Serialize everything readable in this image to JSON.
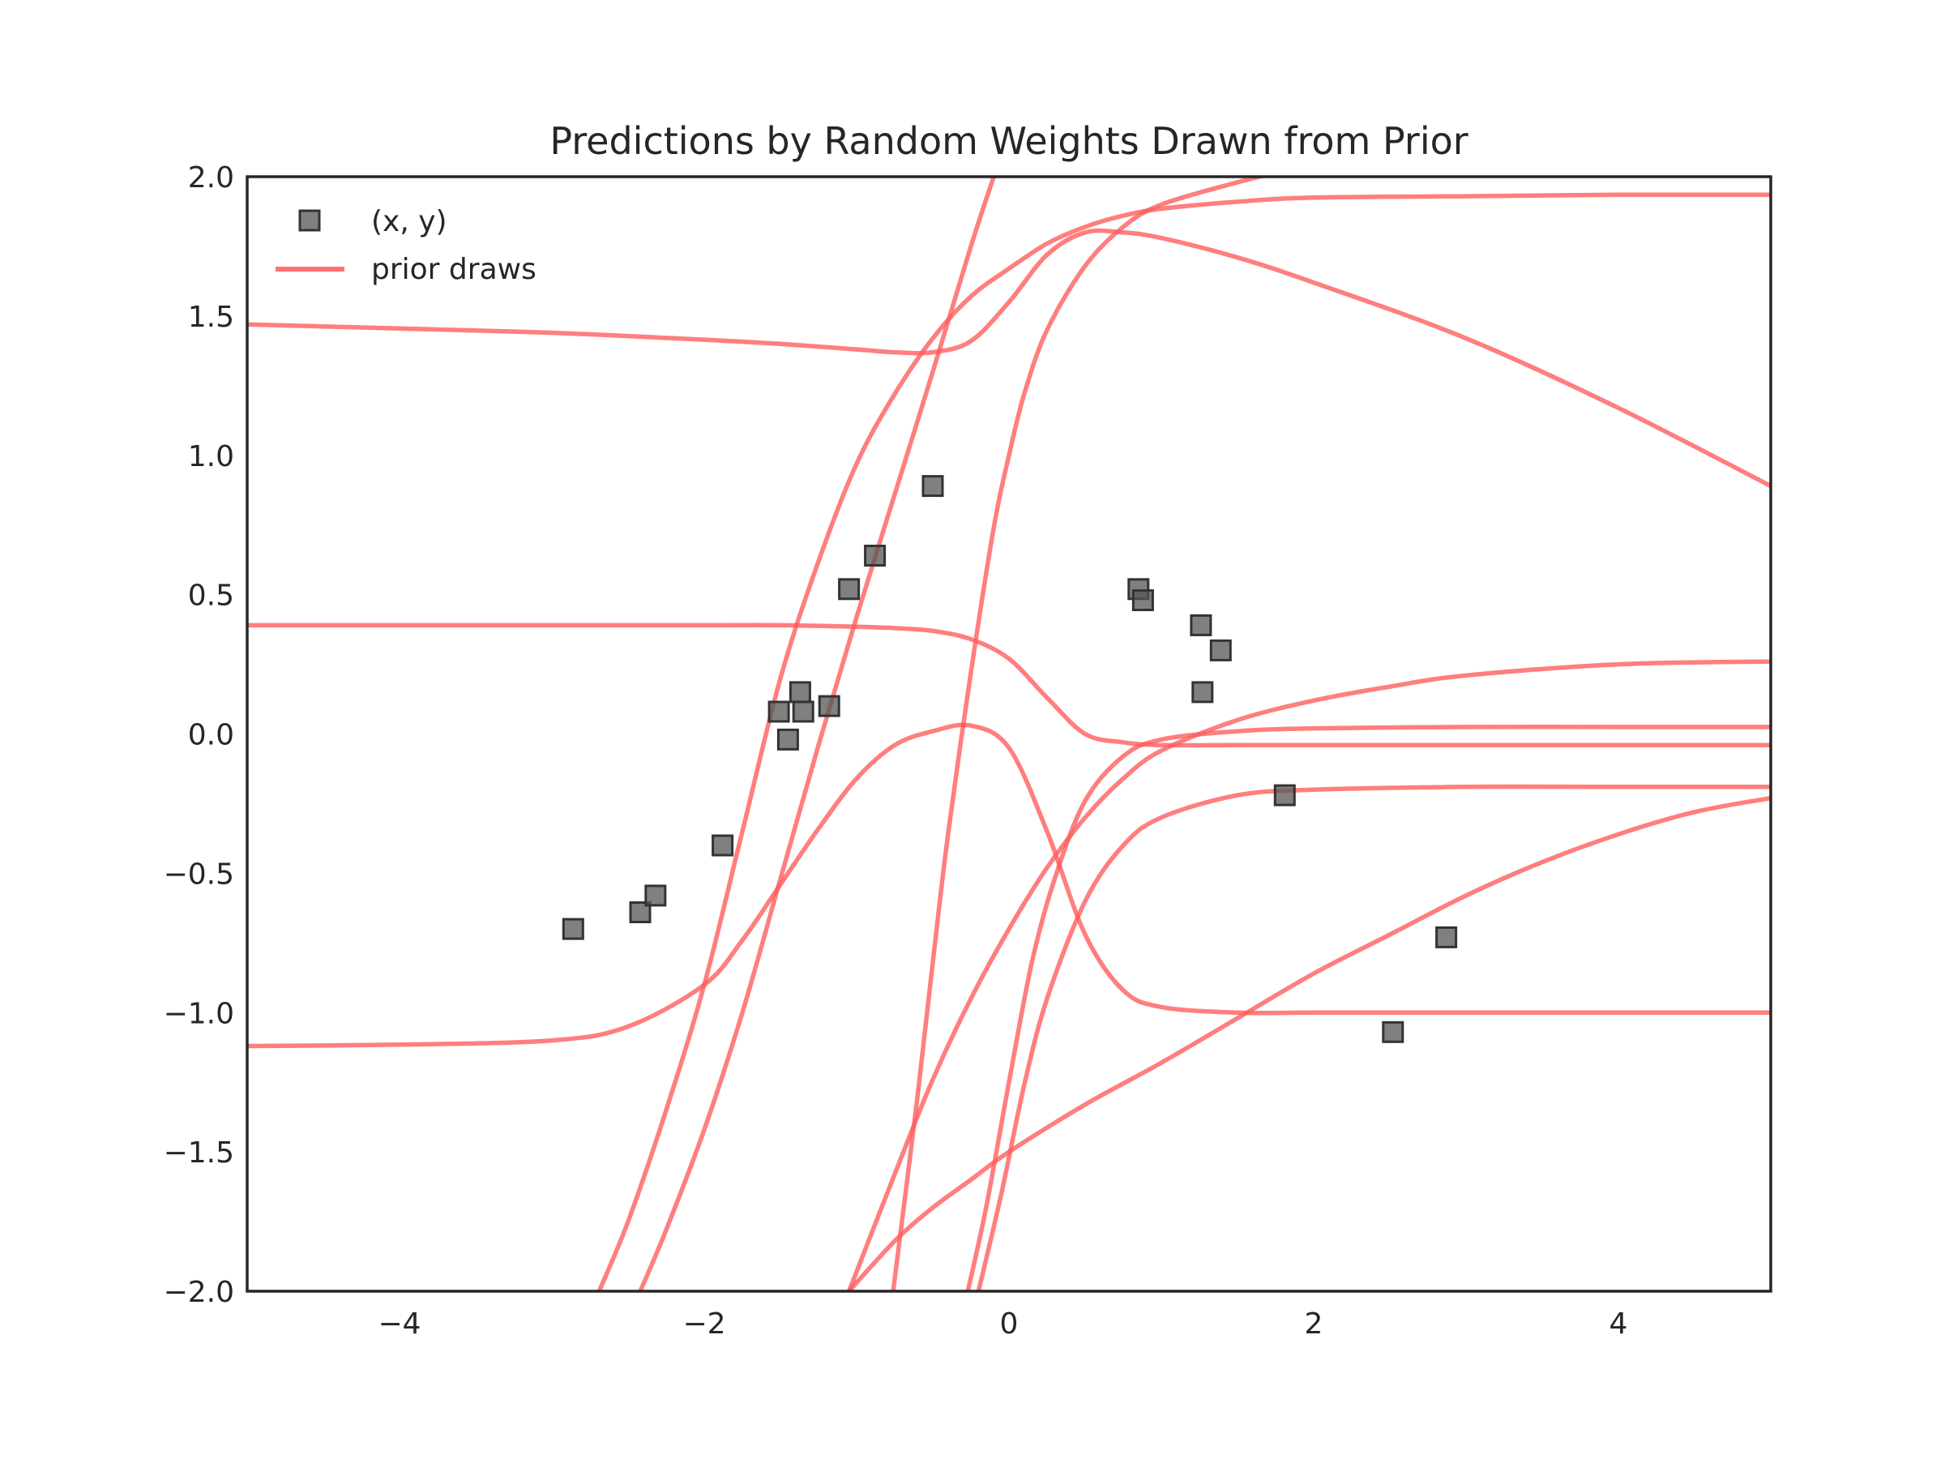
{
  "chart_data": {
    "type": "scatter",
    "title": "Predictions by Random Weights Drawn from Prior",
    "xlabel": "",
    "ylabel": "",
    "xlim": [
      -5,
      5
    ],
    "ylim": [
      -2,
      2
    ],
    "xticks": [
      -4,
      -2,
      0,
      2,
      4
    ],
    "yticks": [
      -2.0,
      -1.5,
      -1.0,
      -0.5,
      0.0,
      0.5,
      1.0,
      1.5,
      2.0
    ],
    "xtick_labels": [
      "−4",
      "−2",
      "0",
      "2",
      "4"
    ],
    "ytick_labels": [
      "−2.0",
      "−1.5",
      "−1.0",
      "−0.5",
      "0.0",
      "0.5",
      "1.0",
      "1.5",
      "2.0"
    ],
    "grid": false,
    "legend": {
      "location": "top-left",
      "entries": [
        {
          "label": "(x, y)",
          "kind": "marker",
          "color": "#555555"
        },
        {
          "label": "prior draws",
          "kind": "line",
          "color": "#ff5a5a"
        }
      ]
    },
    "points": {
      "name": "(x, y)",
      "marker": "square",
      "color": "#555555",
      "x": [
        -2.86,
        -2.42,
        -2.32,
        -1.88,
        -1.51,
        -1.45,
        -1.37,
        -1.35,
        -1.18,
        -1.05,
        -0.88,
        -0.5,
        0.85,
        0.88,
        1.26,
        1.39,
        1.27,
        1.81,
        2.52,
        2.87
      ],
      "y": [
        -0.7,
        -0.64,
        -0.58,
        -0.4,
        0.08,
        -0.02,
        0.15,
        0.08,
        0.1,
        0.52,
        0.64,
        0.89,
        0.52,
        0.48,
        0.39,
        0.3,
        0.15,
        -0.22,
        -1.07,
        -0.73
      ]
    },
    "series": [
      {
        "name": "prior draws",
        "color": "#ff5a5a",
        "x": [
          -5,
          -4,
          -3,
          -2,
          -1.5,
          -1,
          -0.75,
          -0.5,
          -0.25,
          0,
          0.25,
          0.5,
          0.75,
          1,
          1.5,
          2,
          3,
          4,
          5
        ],
        "y": [
          1.47,
          1.455,
          1.44,
          1.415,
          1.4,
          1.38,
          1.37,
          1.37,
          1.41,
          1.55,
          1.72,
          1.8,
          1.8,
          1.78,
          1.71,
          1.62,
          1.42,
          1.17,
          0.89
        ]
      },
      {
        "name": "prior draws",
        "color": "#ff5a5a",
        "x": [
          -5,
          -4,
          -3,
          -2,
          -1.5,
          -1,
          -0.75,
          -0.5,
          -0.25,
          0,
          0.25,
          0.5,
          0.75,
          1,
          1.5,
          2,
          3,
          4,
          5
        ],
        "y": [
          0.39,
          0.39,
          0.39,
          0.39,
          0.39,
          0.385,
          0.38,
          0.37,
          0.34,
          0.27,
          0.13,
          0.0,
          -0.03,
          -0.04,
          -0.04,
          -0.04,
          -0.04,
          -0.04,
          -0.04
        ]
      },
      {
        "name": "prior draws",
        "color": "#ff5a5a",
        "x": [
          -2.69,
          -2.5,
          -2.25,
          -2,
          -1.75,
          -1.5,
          -1.25,
          -1,
          -0.75,
          -0.5,
          -0.25,
          0,
          0.25,
          0.5,
          0.75,
          1,
          1.5,
          2,
          3,
          4,
          5
        ],
        "y": [
          -2.0,
          -1.75,
          -1.35,
          -0.9,
          -0.35,
          0.2,
          0.62,
          0.97,
          1.22,
          1.42,
          1.57,
          1.67,
          1.76,
          1.82,
          1.86,
          1.885,
          1.91,
          1.925,
          1.93,
          1.935,
          1.935
        ]
      },
      {
        "name": "prior draws",
        "color": "#ff5a5a",
        "x": [
          -2.42,
          -2.25,
          -2,
          -1.75,
          -1.5,
          -1.25,
          -1,
          -0.75,
          -0.5,
          -0.25,
          -0.1
        ],
        "y": [
          -2.0,
          -1.78,
          -1.42,
          -1.0,
          -0.52,
          -0.04,
          0.42,
          0.86,
          1.3,
          1.75,
          2.0
        ]
      },
      {
        "name": "prior draws",
        "color": "#ff5a5a",
        "x": [
          -5,
          -4,
          -3,
          -2.5,
          -2,
          -1.75,
          -1.5,
          -1.25,
          -1,
          -0.75,
          -0.5,
          -0.25,
          0,
          0.25,
          0.5,
          0.75,
          1,
          1.5,
          2,
          3,
          4,
          5
        ],
        "y": [
          -1.12,
          -1.115,
          -1.1,
          -1.05,
          -0.9,
          -0.74,
          -0.54,
          -0.34,
          -0.16,
          -0.04,
          0.01,
          0.03,
          -0.05,
          -0.35,
          -0.72,
          -0.92,
          -0.98,
          -1.0,
          -1.0,
          -1.0,
          -1.0,
          -1.0
        ]
      },
      {
        "name": "prior draws",
        "color": "#ff5a5a",
        "x": [
          -0.76,
          -0.6,
          -0.5,
          -0.4,
          -0.25,
          -0.1,
          0,
          0.1,
          0.25,
          0.5,
          0.75,
          1,
          1.5,
          1.8
        ],
        "y": [
          -2.0,
          -1.3,
          -0.82,
          -0.36,
          0.22,
          0.74,
          1.0,
          1.22,
          1.45,
          1.68,
          1.82,
          1.9,
          1.98,
          2.02
        ]
      },
      {
        "name": "prior draws",
        "color": "#ff5a5a",
        "x": [
          -1.05,
          -0.75,
          -0.5,
          -0.25,
          0,
          0.25,
          0.5,
          0.75,
          1,
          1.5,
          2,
          2.5,
          3,
          4,
          5
        ],
        "y": [
          -2.0,
          -1.58,
          -1.24,
          -0.95,
          -0.7,
          -0.48,
          -0.3,
          -0.16,
          -0.06,
          0.05,
          0.12,
          0.17,
          0.21,
          0.25,
          0.26
        ]
      },
      {
        "name": "prior draws",
        "color": "#ff5a5a",
        "x": [
          -0.27,
          -0.15,
          0,
          0.15,
          0.3,
          0.5,
          0.75,
          1,
          1.5,
          2,
          3,
          4,
          5
        ],
        "y": [
          -2.0,
          -1.7,
          -1.25,
          -0.82,
          -0.52,
          -0.24,
          -0.08,
          -0.02,
          0.01,
          0.02,
          0.025,
          0.025,
          0.025
        ]
      },
      {
        "name": "prior draws",
        "color": "#ff5a5a",
        "x": [
          -0.2,
          -0.05,
          0.1,
          0.25,
          0.5,
          0.75,
          1,
          1.5,
          2,
          3,
          4,
          5
        ],
        "y": [
          -2.0,
          -1.65,
          -1.26,
          -0.95,
          -0.6,
          -0.4,
          -0.3,
          -0.22,
          -0.2,
          -0.19,
          -0.19,
          -0.19
        ]
      },
      {
        "name": "prior draws",
        "color": "#ff5a5a",
        "x": [
          -1.05,
          -0.75,
          -0.5,
          -0.25,
          0,
          0.5,
          1,
          1.5,
          2,
          2.5,
          3,
          3.5,
          4,
          4.5,
          5
        ],
        "y": [
          -2.0,
          -1.82,
          -1.7,
          -1.6,
          -1.5,
          -1.33,
          -1.18,
          -1.02,
          -0.86,
          -0.72,
          -0.58,
          -0.46,
          -0.36,
          -0.28,
          -0.23
        ]
      }
    ]
  }
}
